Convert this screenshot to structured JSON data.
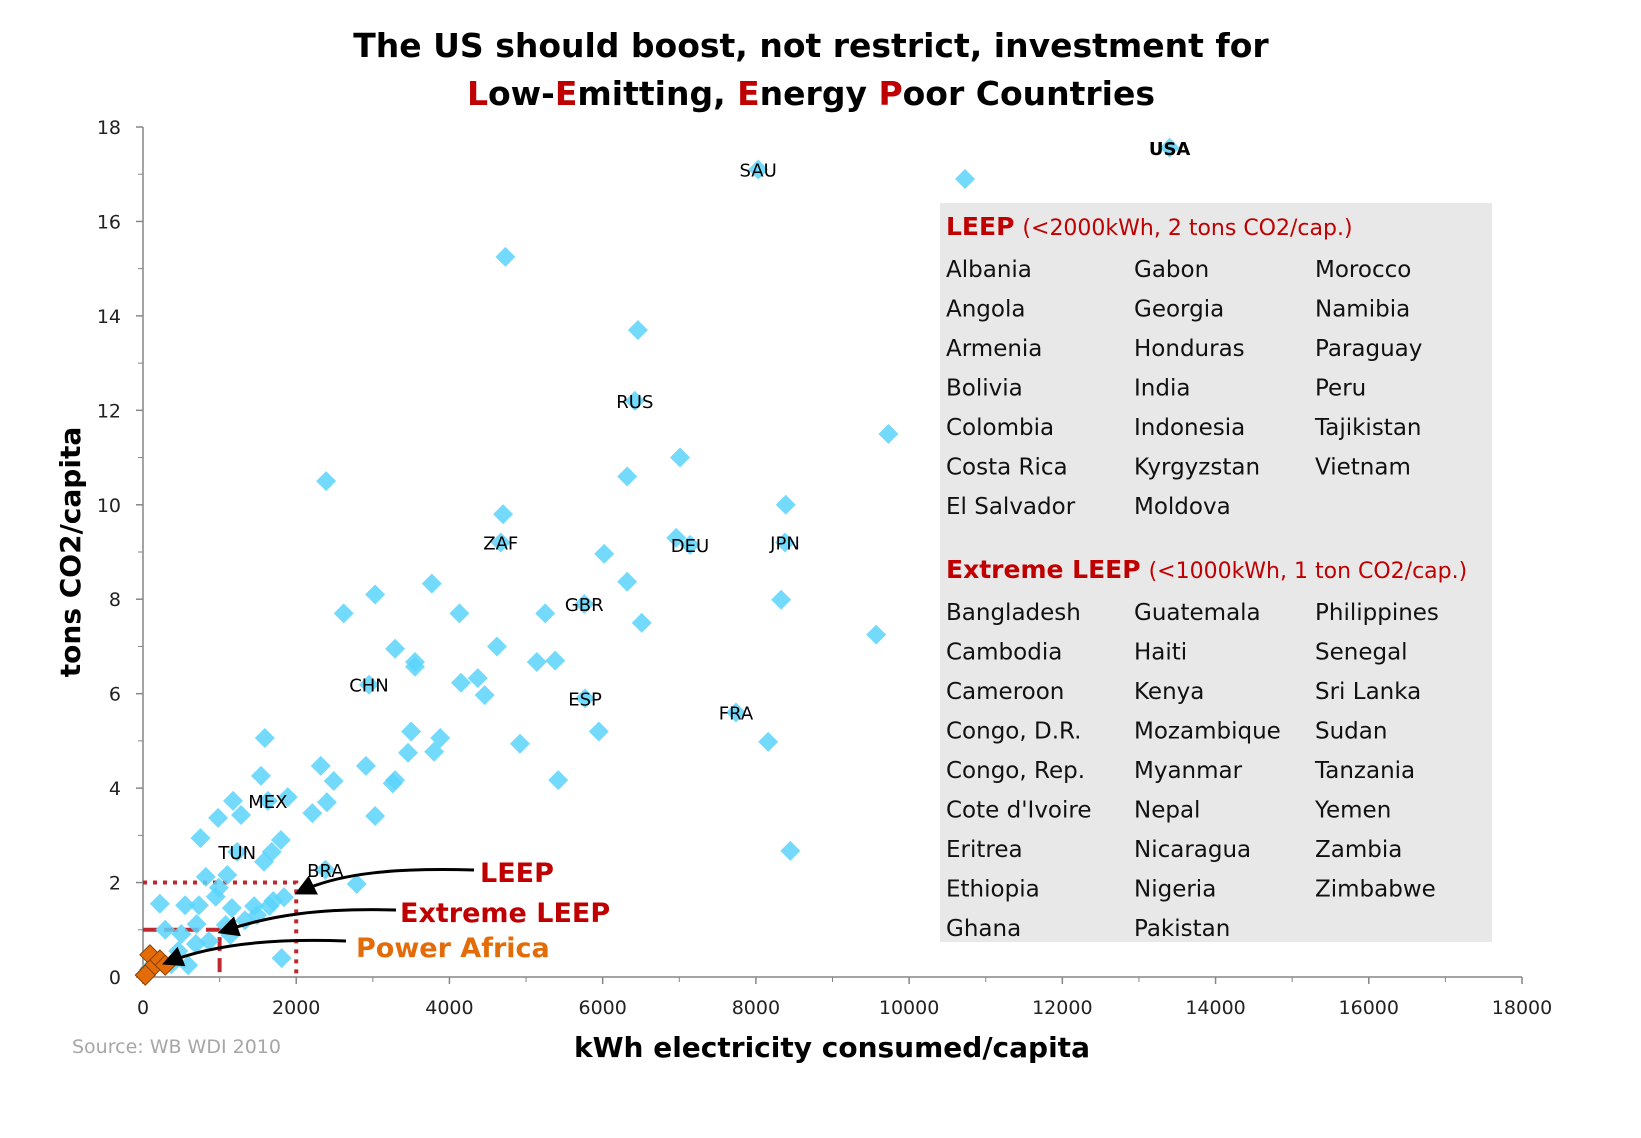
{
  "chart_data": {
    "type": "scatter",
    "title_line1": "The US should boost, not restrict, investment for",
    "title_line2": [
      {
        "text": "L",
        "accent": true
      },
      {
        "text": "ow-",
        "accent": false
      },
      {
        "text": "E",
        "accent": true
      },
      {
        "text": "mitting, ",
        "accent": false
      },
      {
        "text": "E",
        "accent": true
      },
      {
        "text": "nergy ",
        "accent": false
      },
      {
        "text": "P",
        "accent": true
      },
      {
        "text": "oor Countries",
        "accent": false
      }
    ],
    "xlabel": "kWh electricity consumed/capita",
    "ylabel": "tons CO2/capita",
    "xlim": [
      0,
      18000
    ],
    "ylim": [
      0,
      18
    ],
    "xticks": [
      0,
      2000,
      4000,
      6000,
      8000,
      10000,
      12000,
      14000,
      16000,
      18000
    ],
    "yticks": [
      0,
      2,
      4,
      6,
      8,
      10,
      12,
      14,
      16,
      18
    ],
    "grid": false,
    "source": "Source: WB WDI 2010",
    "colors": {
      "points": "#5bd3fb",
      "power_africa": "#e36c09",
      "accent": "#c00000",
      "legend_bg": "#e8e8e8"
    },
    "series": [
      {
        "name": "countries",
        "points": [
          {
            "x": 13400,
            "y": 17.56,
            "label": "USA",
            "bold": true
          },
          {
            "x": 10730,
            "y": 16.9
          },
          {
            "x": 8030,
            "y": 17.1,
            "label": "SAU"
          },
          {
            "x": 4730,
            "y": 15.25
          },
          {
            "x": 6460,
            "y": 13.7
          },
          {
            "x": 6420,
            "y": 12.2,
            "label": "RUS"
          },
          {
            "x": 9730,
            "y": 11.5
          },
          {
            "x": 7010,
            "y": 11.0
          },
          {
            "x": 6320,
            "y": 10.6
          },
          {
            "x": 2390,
            "y": 10.5
          },
          {
            "x": 8390,
            "y": 10.0
          },
          {
            "x": 4700,
            "y": 9.8
          },
          {
            "x": 4670,
            "y": 9.2,
            "label": "ZAF"
          },
          {
            "x": 6960,
            "y": 9.3
          },
          {
            "x": 7140,
            "y": 9.15,
            "label": "DEU"
          },
          {
            "x": 8380,
            "y": 9.2,
            "label": "JPN"
          },
          {
            "x": 6020,
            "y": 8.96
          },
          {
            "x": 6320,
            "y": 8.37
          },
          {
            "x": 3770,
            "y": 8.33
          },
          {
            "x": 3030,
            "y": 8.1
          },
          {
            "x": 8330,
            "y": 7.99
          },
          {
            "x": 5760,
            "y": 7.9,
            "label": "GBR"
          },
          {
            "x": 4130,
            "y": 7.7
          },
          {
            "x": 5250,
            "y": 7.7
          },
          {
            "x": 2620,
            "y": 7.7
          },
          {
            "x": 6510,
            "y": 7.5
          },
          {
            "x": 9570,
            "y": 7.25
          },
          {
            "x": 4620,
            "y": 7.0
          },
          {
            "x": 3290,
            "y": 6.95
          },
          {
            "x": 3550,
            "y": 6.67
          },
          {
            "x": 3550,
            "y": 6.57
          },
          {
            "x": 5140,
            "y": 6.67
          },
          {
            "x": 5380,
            "y": 6.7
          },
          {
            "x": 4370,
            "y": 6.33
          },
          {
            "x": 4150,
            "y": 6.23
          },
          {
            "x": 4460,
            "y": 5.97
          },
          {
            "x": 2950,
            "y": 6.19,
            "label": "CHN"
          },
          {
            "x": 5770,
            "y": 5.9,
            "label": "ESP"
          },
          {
            "x": 7740,
            "y": 5.6,
            "label": "FRA"
          },
          {
            "x": 5950,
            "y": 5.2
          },
          {
            "x": 3500,
            "y": 5.2
          },
          {
            "x": 1590,
            "y": 5.06
          },
          {
            "x": 8160,
            "y": 4.98
          },
          {
            "x": 3880,
            "y": 5.06
          },
          {
            "x": 4920,
            "y": 4.94
          },
          {
            "x": 3800,
            "y": 4.77
          },
          {
            "x": 3460,
            "y": 4.75
          },
          {
            "x": 2320,
            "y": 4.47
          },
          {
            "x": 2910,
            "y": 4.47
          },
          {
            "x": 1540,
            "y": 4.26
          },
          {
            "x": 2490,
            "y": 4.15
          },
          {
            "x": 3290,
            "y": 4.17
          },
          {
            "x": 3260,
            "y": 4.1
          },
          {
            "x": 5420,
            "y": 4.17
          },
          {
            "x": 1630,
            "y": 3.73,
            "label": "MEX"
          },
          {
            "x": 1175,
            "y": 3.73
          },
          {
            "x": 1890,
            "y": 3.81
          },
          {
            "x": 2400,
            "y": 3.7
          },
          {
            "x": 1280,
            "y": 3.43
          },
          {
            "x": 980,
            "y": 3.37
          },
          {
            "x": 2210,
            "y": 3.47
          },
          {
            "x": 3030,
            "y": 3.41
          },
          {
            "x": 750,
            "y": 2.94
          },
          {
            "x": 1800,
            "y": 2.9
          },
          {
            "x": 1230,
            "y": 2.65,
            "label": "TUN"
          },
          {
            "x": 1680,
            "y": 2.65
          },
          {
            "x": 1580,
            "y": 2.44
          },
          {
            "x": 8450,
            "y": 2.67
          },
          {
            "x": 2380,
            "y": 2.27,
            "label": "BRA"
          },
          {
            "x": 2790,
            "y": 1.97
          },
          {
            "x": 820,
            "y": 2.12
          },
          {
            "x": 1100,
            "y": 2.16
          },
          {
            "x": 220,
            "y": 1.55
          },
          {
            "x": 950,
            "y": 1.7
          },
          {
            "x": 990,
            "y": 1.89
          },
          {
            "x": 730,
            "y": 1.52
          },
          {
            "x": 550,
            "y": 1.52
          },
          {
            "x": 1160,
            "y": 1.46
          },
          {
            "x": 1450,
            "y": 1.5
          },
          {
            "x": 1650,
            "y": 1.5
          },
          {
            "x": 1700,
            "y": 1.61
          },
          {
            "x": 1840,
            "y": 1.69
          },
          {
            "x": 1490,
            "y": 1.31
          },
          {
            "x": 1330,
            "y": 1.2
          },
          {
            "x": 1140,
            "y": 0.89
          },
          {
            "x": 700,
            "y": 1.12
          },
          {
            "x": 500,
            "y": 0.91
          },
          {
            "x": 860,
            "y": 0.76
          },
          {
            "x": 690,
            "y": 0.7
          },
          {
            "x": 290,
            "y": 1.0
          },
          {
            "x": 460,
            "y": 0.55
          },
          {
            "x": 590,
            "y": 0.25
          },
          {
            "x": 1810,
            "y": 0.4
          },
          {
            "x": 370,
            "y": 0.27
          },
          {
            "x": 90,
            "y": 0.19
          },
          {
            "x": 1080,
            "y": 1.1
          }
        ]
      },
      {
        "name": "Power Africa",
        "points": [
          {
            "x": 90,
            "y": 0.47
          },
          {
            "x": 220,
            "y": 0.36
          },
          {
            "x": 90,
            "y": 0.15
          },
          {
            "x": 30,
            "y": 0.04
          },
          {
            "x": 290,
            "y": 0.25
          }
        ]
      }
    ],
    "thresholds": [
      {
        "label": "LEEP",
        "x": 2000,
        "y": 2,
        "style": "dotted"
      },
      {
        "label": "Extreme LEEP",
        "x": 1000,
        "y": 1,
        "style": "dashed"
      }
    ],
    "annotations": [
      {
        "text": "LEEP",
        "color": "#c00000"
      },
      {
        "text": "Extreme LEEP",
        "color": "#c00000"
      },
      {
        "text": "Power Africa",
        "color": "#e36c09"
      }
    ],
    "legend_box": {
      "leep": {
        "heading": "LEEP",
        "criteria": "(<2000kWh, 2 tons CO2/cap.)",
        "columns": [
          [
            "Albania",
            "Angola",
            "Armenia",
            "Bolivia",
            "Colombia",
            "Costa Rica",
            "El Salvador"
          ],
          [
            "Gabon",
            "Georgia",
            "Honduras",
            "India",
            "Indonesia",
            "Kyrgyzstan",
            "Moldova"
          ],
          [
            "Morocco",
            "Namibia",
            "Paraguay",
            "Peru",
            "Tajikistan",
            "Vietnam"
          ]
        ]
      },
      "extreme": {
        "heading": "Extreme LEEP",
        "criteria": "(<1000kWh, 1 ton CO2/cap.)",
        "columns": [
          [
            "Bangladesh",
            "Cambodia",
            "Cameroon",
            "Congo, D.R.",
            "Congo, Rep.",
            "Cote d'Ivoire",
            "Eritrea",
            "Ethiopia",
            "Ghana"
          ],
          [
            "Guatemala",
            "Haiti",
            "Kenya",
            "Mozambique",
            "Myanmar",
            "Nepal",
            "Nicaragua",
            "Nigeria",
            "Pakistan"
          ],
          [
            "Philippines",
            "Senegal",
            "Sri Lanka",
            "Sudan",
            "Tanzania",
            "Yemen",
            "Zambia",
            "Zimbabwe"
          ]
        ]
      }
    }
  }
}
